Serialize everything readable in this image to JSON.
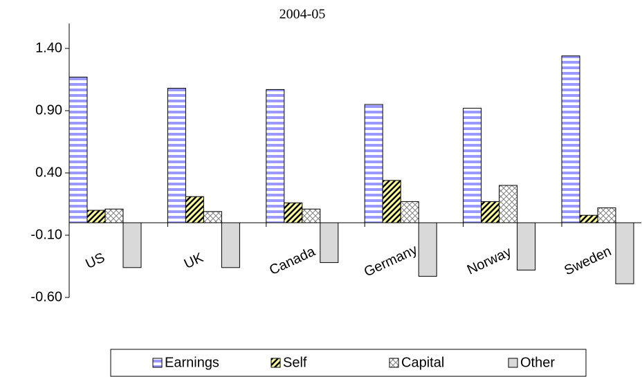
{
  "chart_data": {
    "type": "bar",
    "title": "2004-05",
    "categories": [
      "US",
      "UK",
      "Canada",
      "Germany",
      "Norway",
      "Sweden"
    ],
    "series": [
      {
        "name": "Earnings",
        "color": "#9999ff",
        "values": [
          1.17,
          1.08,
          1.07,
          0.95,
          0.92,
          1.34
        ]
      },
      {
        "name": "Self",
        "color": "#ffff99",
        "values": [
          0.1,
          0.21,
          0.16,
          0.34,
          0.17,
          0.06
        ]
      },
      {
        "name": "Capital",
        "color": "#808080",
        "values": [
          0.11,
          0.09,
          0.11,
          0.17,
          0.3,
          0.12
        ]
      },
      {
        "name": "Other",
        "color": "#d9d9d9",
        "values": [
          -0.36,
          -0.36,
          -0.32,
          -0.43,
          -0.38,
          -0.49
        ]
      }
    ],
    "ylim": [
      -0.6,
      1.6
    ],
    "yticks": [
      {
        "value": -0.6,
        "label": "-0.60"
      },
      {
        "value": -0.1,
        "label": "-0.10"
      },
      {
        "value": 0.4,
        "label": "0.40"
      },
      {
        "value": 0.9,
        "label": "0.90"
      },
      {
        "value": 1.4,
        "label": "1.40"
      }
    ],
    "legend": "bottom"
  }
}
